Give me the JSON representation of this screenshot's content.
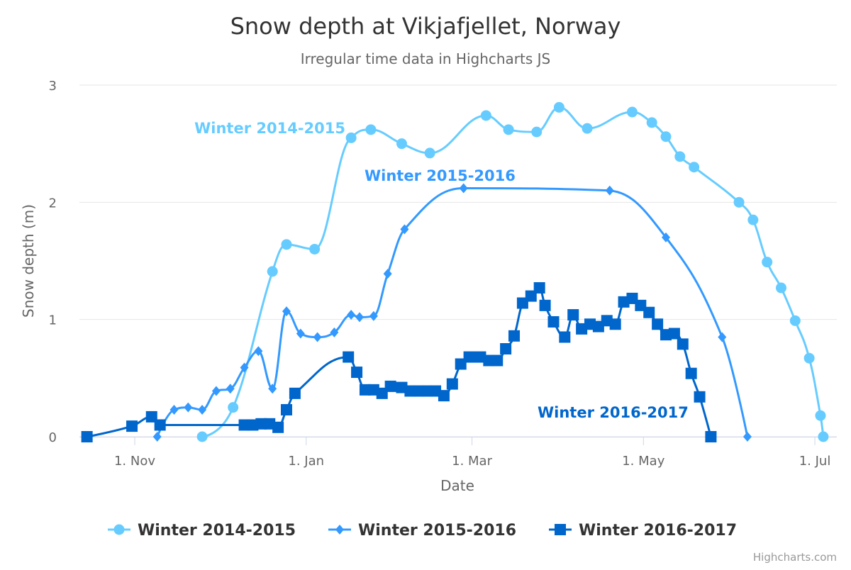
{
  "chart_data": {
    "type": "line",
    "subtype": "spline",
    "title": "Snow depth at Vikjafjellet, Norway",
    "subtitle": "Irregular time data in Highcharts JS",
    "xlabel": "Date",
    "ylabel": "Snow depth (m)",
    "x_ticks": [
      "1. Nov",
      "1. Jan",
      "1. Mar",
      "1. May",
      "1. Jul"
    ],
    "y_ticks": [
      "0",
      "1",
      "2",
      "3"
    ],
    "ylim": [
      0,
      3
    ],
    "grid": "horizontal",
    "legend_position": "bottom",
    "credits": "Highcharts.com",
    "series": [
      {
        "name": "Winter 2014-2015",
        "color": "#66CCFF",
        "marker": "circle",
        "points": [
          [
            "1970-11-25",
            0
          ],
          [
            "1970-12-06",
            0.25
          ],
          [
            "1970-12-20",
            1.41
          ],
          [
            "1970-12-25",
            1.64
          ],
          [
            "1971-01-04",
            1.6
          ],
          [
            "1971-01-17",
            2.55
          ],
          [
            "1971-01-24",
            2.62
          ],
          [
            "1971-02-04",
            2.5
          ],
          [
            "1971-02-14",
            2.42
          ],
          [
            "1971-03-06",
            2.74
          ],
          [
            "1971-03-14",
            2.62
          ],
          [
            "1971-03-24",
            2.6
          ],
          [
            "1971-04-01",
            2.81
          ],
          [
            "1971-04-11",
            2.63
          ],
          [
            "1971-04-27",
            2.77
          ],
          [
            "1971-05-04",
            2.68
          ],
          [
            "1971-05-09",
            2.56
          ],
          [
            "1971-05-14",
            2.39
          ],
          [
            "1971-05-19",
            2.3
          ],
          [
            "1971-06-04",
            2
          ],
          [
            "1971-06-09",
            1.85
          ],
          [
            "1971-06-14",
            1.49
          ],
          [
            "1971-06-19",
            1.27
          ],
          [
            "1971-06-24",
            0.99
          ],
          [
            "1971-06-29",
            0.67
          ],
          [
            "1971-07-03",
            0.18
          ],
          [
            "1971-07-04",
            0
          ]
        ]
      },
      {
        "name": "Winter 2015-2016",
        "color": "#3399FF",
        "marker": "diamond",
        "points": [
          [
            "1970-11-09",
            0
          ],
          [
            "1970-11-15",
            0.23
          ],
          [
            "1970-11-20",
            0.25
          ],
          [
            "1970-11-25",
            0.23
          ],
          [
            "1970-11-30",
            0.39
          ],
          [
            "1970-12-05",
            0.41
          ],
          [
            "1970-12-10",
            0.59
          ],
          [
            "1970-12-15",
            0.73
          ],
          [
            "1970-12-20",
            0.41
          ],
          [
            "1970-12-25",
            1.07
          ],
          [
            "1970-12-30",
            0.88
          ],
          [
            "1971-01-05",
            0.85
          ],
          [
            "1971-01-11",
            0.89
          ],
          [
            "1971-01-17",
            1.04
          ],
          [
            "1971-01-20",
            1.02
          ],
          [
            "1971-01-25",
            1.03
          ],
          [
            "1971-01-30",
            1.39
          ],
          [
            "1971-02-05",
            1.77
          ],
          [
            "1971-02-26",
            2.12
          ],
          [
            "1971-04-19",
            2.1
          ],
          [
            "1971-05-09",
            1.7
          ],
          [
            "1971-05-29",
            0.85
          ],
          [
            "1971-06-07",
            0
          ]
        ]
      },
      {
        "name": "Winter 2016-2017",
        "color": "#0066CC",
        "marker": "square",
        "points": [
          [
            "1970-10-15",
            0
          ],
          [
            "1970-10-31",
            0.09
          ],
          [
            "1970-11-07",
            0.17
          ],
          [
            "1970-11-10",
            0.1
          ],
          [
            "1970-12-10",
            0.1
          ],
          [
            "1970-12-13",
            0.1
          ],
          [
            "1970-12-16",
            0.11
          ],
          [
            "1970-12-19",
            0.11
          ],
          [
            "1970-12-22",
            0.08
          ],
          [
            "1970-12-25",
            0.23
          ],
          [
            "1970-12-28",
            0.37
          ],
          [
            "1971-01-16",
            0.68
          ],
          [
            "1971-01-19",
            0.55
          ],
          [
            "1971-01-22",
            0.4
          ],
          [
            "1971-01-25",
            0.4
          ],
          [
            "1971-01-28",
            0.37
          ],
          [
            "1971-01-31",
            0.43
          ],
          [
            "1971-02-04",
            0.42
          ],
          [
            "1971-02-07",
            0.39
          ],
          [
            "1971-02-10",
            0.39
          ],
          [
            "1971-02-13",
            0.39
          ],
          [
            "1971-02-16",
            0.39
          ],
          [
            "1971-02-19",
            0.35
          ],
          [
            "1971-02-22",
            0.45
          ],
          [
            "1971-02-25",
            0.62
          ],
          [
            "1971-02-28",
            0.68
          ],
          [
            "1971-03-04",
            0.68
          ],
          [
            "1971-03-07",
            0.65
          ],
          [
            "1971-03-10",
            0.65
          ],
          [
            "1971-03-13",
            0.75
          ],
          [
            "1971-03-16",
            0.86
          ],
          [
            "1971-03-19",
            1.14
          ],
          [
            "1971-03-22",
            1.2
          ],
          [
            "1971-03-25",
            1.27
          ],
          [
            "1971-03-27",
            1.12
          ],
          [
            "1971-03-30",
            0.98
          ],
          [
            "1971-04-03",
            0.85
          ],
          [
            "1971-04-06",
            1.04
          ],
          [
            "1971-04-09",
            0.92
          ],
          [
            "1971-04-12",
            0.96
          ],
          [
            "1971-04-15",
            0.94
          ],
          [
            "1971-04-18",
            0.99
          ],
          [
            "1971-04-21",
            0.96
          ],
          [
            "1971-04-24",
            1.15
          ],
          [
            "1971-04-27",
            1.18
          ],
          [
            "1971-04-30",
            1.12
          ],
          [
            "1971-05-03",
            1.06
          ],
          [
            "1971-05-06",
            0.96
          ],
          [
            "1971-05-09",
            0.87
          ],
          [
            "1971-05-12",
            0.88
          ],
          [
            "1971-05-15",
            0.79
          ],
          [
            "1971-05-18",
            0.54
          ],
          [
            "1971-05-21",
            0.34
          ],
          [
            "1971-05-25",
            0
          ]
        ]
      }
    ]
  }
}
